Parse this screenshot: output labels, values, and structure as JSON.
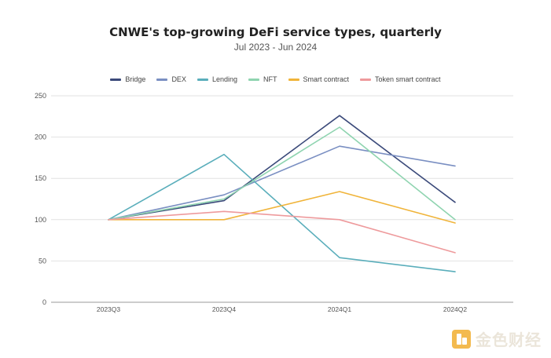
{
  "chart_data": {
    "type": "line",
    "title": "CNWE's top-growing DeFi service types, quarterly",
    "subtitle": "Jul 2023 - Jun 2024",
    "xlabel": "",
    "ylabel": "",
    "categories": [
      "2023Q3",
      "2023Q4",
      "2024Q1",
      "2024Q2"
    ],
    "ylim": [
      0,
      250
    ],
    "yticks": [
      0,
      50,
      100,
      150,
      200,
      250
    ],
    "grid": true,
    "legend_position": "top-center",
    "series": [
      {
        "name": "Bridge",
        "color": "#3b4a7a",
        "values": [
          100,
          123,
          226,
          121
        ]
      },
      {
        "name": "DEX",
        "color": "#7a8fc2",
        "values": [
          100,
          130,
          189,
          165
        ]
      },
      {
        "name": "Lending",
        "color": "#5aaebb",
        "values": [
          100,
          179,
          54,
          37
        ]
      },
      {
        "name": "NFT",
        "color": "#8fd4b0",
        "values": [
          100,
          125,
          212,
          100
        ]
      },
      {
        "name": "Smart contract",
        "color": "#f0b43a",
        "values": [
          100,
          100,
          134,
          96
        ]
      },
      {
        "name": "Token smart contract",
        "color": "#ee9a9c",
        "values": [
          100,
          110,
          100,
          60
        ]
      }
    ]
  },
  "watermark": {
    "text": "金色财经",
    "icon": "golden-finance-logo-icon"
  }
}
